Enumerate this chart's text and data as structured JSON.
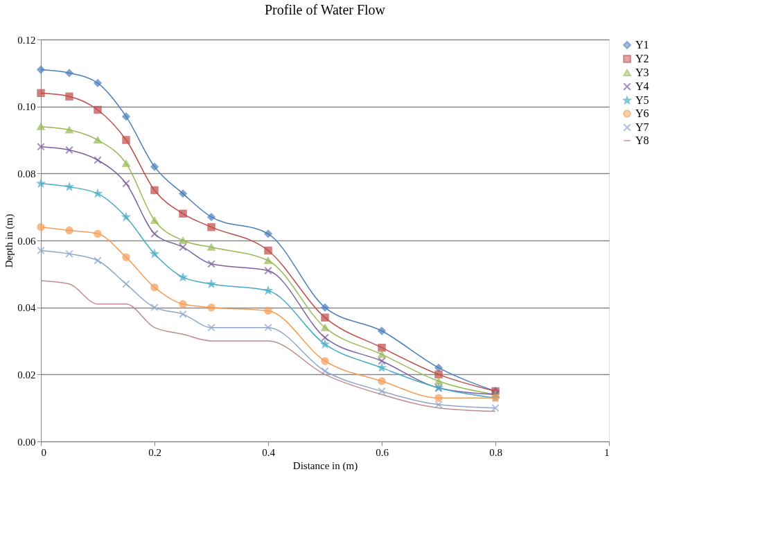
{
  "chart_data": {
    "type": "line",
    "title": "Profile of Water Flow",
    "xlabel": "Distance in (m)",
    "ylabel": "Depth in (m)",
    "x": [
      0,
      0.05,
      0.1,
      0.15,
      0.2,
      0.25,
      0.3,
      0.4,
      0.5,
      0.6,
      0.7,
      0.8
    ],
    "xlim": [
      0,
      1
    ],
    "xticks": [
      0,
      0.2,
      0.4,
      0.6,
      0.8,
      1
    ],
    "ylim": [
      0,
      0.12
    ],
    "yticks": [
      {
        "value": 0,
        "label": "0.00"
      },
      {
        "value": 0.02,
        "label": "0.02"
      },
      {
        "value": 0.04,
        "label": "0.04"
      },
      {
        "value": 0.06,
        "label": "0.06"
      },
      {
        "value": 0.08,
        "label": "0.08"
      },
      {
        "value": 0.1,
        "label": "0.10"
      },
      {
        "value": 0.12,
        "label": "0.12"
      }
    ],
    "grid": "y",
    "legend": "right",
    "line_style": "solid",
    "series": [
      {
        "name": "Y1",
        "color": "#4a7ebb",
        "marker": "diamond",
        "values": [
          0.111,
          0.11,
          0.107,
          0.097,
          0.082,
          0.074,
          0.067,
          0.062,
          0.04,
          0.033,
          0.022,
          0.015
        ]
      },
      {
        "name": "Y2",
        "color": "#be4b48",
        "marker": "square",
        "values": [
          0.104,
          0.103,
          0.099,
          0.09,
          0.075,
          0.068,
          0.064,
          0.057,
          0.037,
          0.028,
          0.02,
          0.015
        ]
      },
      {
        "name": "Y3",
        "color": "#98b954",
        "marker": "triangle",
        "values": [
          0.094,
          0.093,
          0.09,
          0.083,
          0.066,
          0.06,
          0.058,
          0.054,
          0.034,
          0.026,
          0.018,
          0.014
        ]
      },
      {
        "name": "Y4",
        "color": "#7d60a0",
        "marker": "cross",
        "values": [
          0.088,
          0.087,
          0.084,
          0.077,
          0.062,
          0.058,
          0.053,
          0.051,
          0.031,
          0.024,
          0.016,
          0.014
        ]
      },
      {
        "name": "Y5",
        "color": "#46aac5",
        "marker": "star",
        "values": [
          0.077,
          0.076,
          0.074,
          0.067,
          0.056,
          0.049,
          0.047,
          0.045,
          0.029,
          0.022,
          0.016,
          0.013
        ]
      },
      {
        "name": "Y6",
        "color": "#f59d56",
        "marker": "circle",
        "values": [
          0.064,
          0.063,
          0.062,
          0.055,
          0.046,
          0.041,
          0.04,
          0.039,
          0.024,
          0.018,
          0.013,
          0.013
        ]
      },
      {
        "name": "Y7",
        "color": "#8da5cb",
        "marker": "cross",
        "values": [
          0.057,
          0.056,
          0.054,
          0.047,
          0.04,
          0.038,
          0.034,
          0.034,
          0.021,
          0.015,
          0.011,
          0.01
        ]
      },
      {
        "name": "Y8",
        "color": "#c28b8b",
        "marker": "none",
        "values": [
          0.048,
          0.047,
          0.041,
          0.041,
          0.034,
          0.032,
          0.03,
          0.03,
          0.02,
          0.014,
          0.01,
          0.009
        ]
      }
    ]
  }
}
